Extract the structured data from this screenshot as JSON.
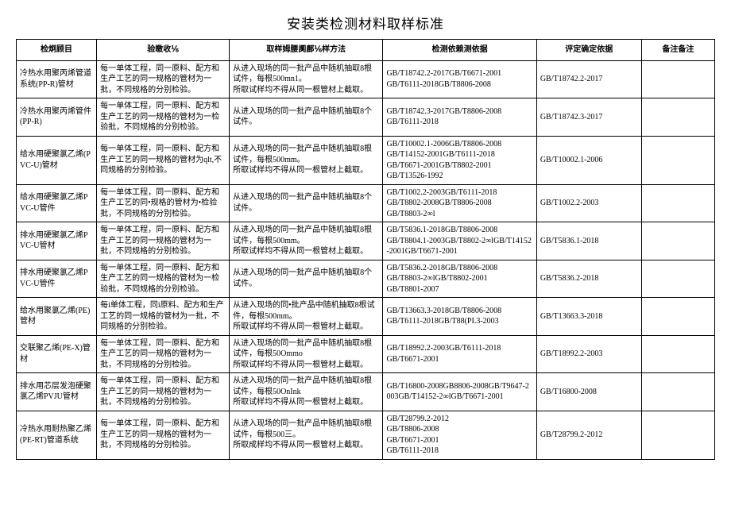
{
  "title": "安装类检测材料取样标准",
  "columns": [
    "检炯顾目",
    "验皦收⅙",
    "取样姆腰阒鄜⅙样方法",
    "检测依赖测依据",
    "评定确定依据",
    "备注备注"
  ],
  "rows": [
    {
      "c1": "冷热水用聚丙烯管道系统(PP-R)管材",
      "c2": "每一单体工程，同一原料、配方和生产工艺的同一规格的管材为一批，不同规格的分别检验。",
      "c3": "从进入现场的同一批产品中随机抽取8根试件，每根500mn1。\n所取试样均不得从同一根管材上截取。",
      "c4": "GB/T18742.2-2017GB/T6671-2001\nGB/T6111-2018GB/T8806-2008",
      "c5": "GB/T18742.2-2017",
      "c6": ""
    },
    {
      "c1": "冷热水用聚丙烯管件(PP-R)",
      "c2": "每一单体工程，同一原料、配方和生产工艺的同一规格的管材为一检验批，不同规格的分别检验。",
      "c3": "从进入现场的同一批产品中随机抽取8个试件。",
      "c4": "GB/T18742.3-2017GB/T8806-2008\nGB/T6111-2018",
      "c5": "GB/T18742.3-2017",
      "c6": ""
    },
    {
      "c1": "给水用硬聚氯乙烯(PVC-U)管材",
      "c2": "每一单体工程，同一原料、配方和生产工艺的同一规格的管材为qlt,不同规格的分别检验。",
      "c3": "从进入现场的同一批产品中随机抽取8根试件，每根500mm。\n所取试样均不得从同一根管材上截取。",
      "c4": "GB/T10002.1-2006GB/T8806-2008\nGB/T14152-2001GB/T6111-2018\nGB/T6671-2001GB/T8802-2001\nGB/T13526-1992",
      "c5": "GB/T10002.1-2006",
      "c6": ""
    },
    {
      "c1": "给水用硬聚氯乙烯PVC-U管件",
      "c2": "每一单体工程，同一原料、配方和生产工艺的同•规格的管材为•检验批，不同规格的分别检验。",
      "c3": "从进入现场的同一批产品中随机抽取8个试件。",
      "c4": "GB/T1002.2-2003GB/T6111-2018\nGB/T8802-2008GB/T8806-2008\nGB/T8803-2∞l",
      "c5": "GB/T1002.2-2003",
      "c6": ""
    },
    {
      "c1": "排水用硬聚氯乙烯PVC-U管材",
      "c2": "每一单体工程，同一原料、配方和生产工艺的同一规格的管材为一批，不同规格的分别检验。",
      "c3": "从进入现场的同一批产品中随机抽取8根试件，每根500mm。\n所取试样均不得从同一根管材上截取。",
      "c4": "GB/T5836.1-2018GB/T8806-2008\nGB/T8804.1-2003GB/T8802-2∞lGB/T14152-2001GB/T6671-2001",
      "c5": "GB/T5836.1-2018",
      "c6": ""
    },
    {
      "c1": "排水用硬聚氯乙烯PVC-U管件",
      "c2": "每一单体工程，同一原料、配方和生产工艺的同一规格的管材为一检验批，不同规格的分别检验。",
      "c3": "从进入现场的同一批产品中随机抽取8个试件。",
      "c4": "GB/T5836.2-2018GB/T8806-2008\nGB/T8803-2∞lGB/T8802-2001\nGB/T8801-2007",
      "c5": "GB/T5836.2-2018",
      "c6": ""
    },
    {
      "c1": "给水用聚氯乙烯(PE)管材",
      "c2": "每i单体工程，同i原料、配方和生产工艺的同一规格的管材为一批，不同规格的分别检验。",
      "c3": "从进入现场的同•批产品中随机抽取8根试件，每根500mm。\n所取试样均不得从同一根管材上截取。",
      "c4": "GB/T13663.3-2018GB/T8806-2008\nGB/T6111-2018GB/T88(PI.3-2003",
      "c5": "GB/T13663.3-2018",
      "c6": ""
    },
    {
      "c1": "交联聚乙烯(PE-X)管材",
      "c2": "每一单体工程，同一原料、配方和生产工艺的同一规格的管材为一批，不同规格的分别检验。",
      "c3": "从进入现场的同一批产品中随机抽取8根试件，每根50Ommo\n所取试样均不得从同一根管材上截取。",
      "c4": "GB/T18992.2-2003GB/T6111-2018\nGB/T6671-2001",
      "c5": "GB/T18992.2-2003",
      "c6": ""
    },
    {
      "c1": "排水用芯层发泡硬聚氯乙烯PVJU管材",
      "c2": "每一单体工程，同一原料、配方和生产工艺的同一规格的管材为一批，不同规格的分别检验。",
      "c3": "从进入现场的同一批产品中随机抽取8根试件，每根50OnInk\n所取试样均不得从同一根管材上截取。",
      "c4": "GB/T16800-2008GB8806-2008GB/T9647-2003GB/T14152-2∞lGB/T6671-2001",
      "c5": "GB/T16800-2008",
      "c6": ""
    },
    {
      "c1": "冷热水用耐热聚乙烯(PE-RT)管道系统",
      "c2": "每一单体工程，同一原料、配方和生产工艺的同一规格的管材为一批，不同规格的分别检验。",
      "c3": "从进入现场的同一批产品中随机抽取8根试件，每根500三。\n所取成样均不得从同一根管材上截取。",
      "c4": "GB/T28799.2-2012\nGB/T8806-2008\nGB/T6671-2001\nGB/T6111-2018",
      "c5": "GB/T28799.2-2012",
      "c6": ""
    }
  ]
}
